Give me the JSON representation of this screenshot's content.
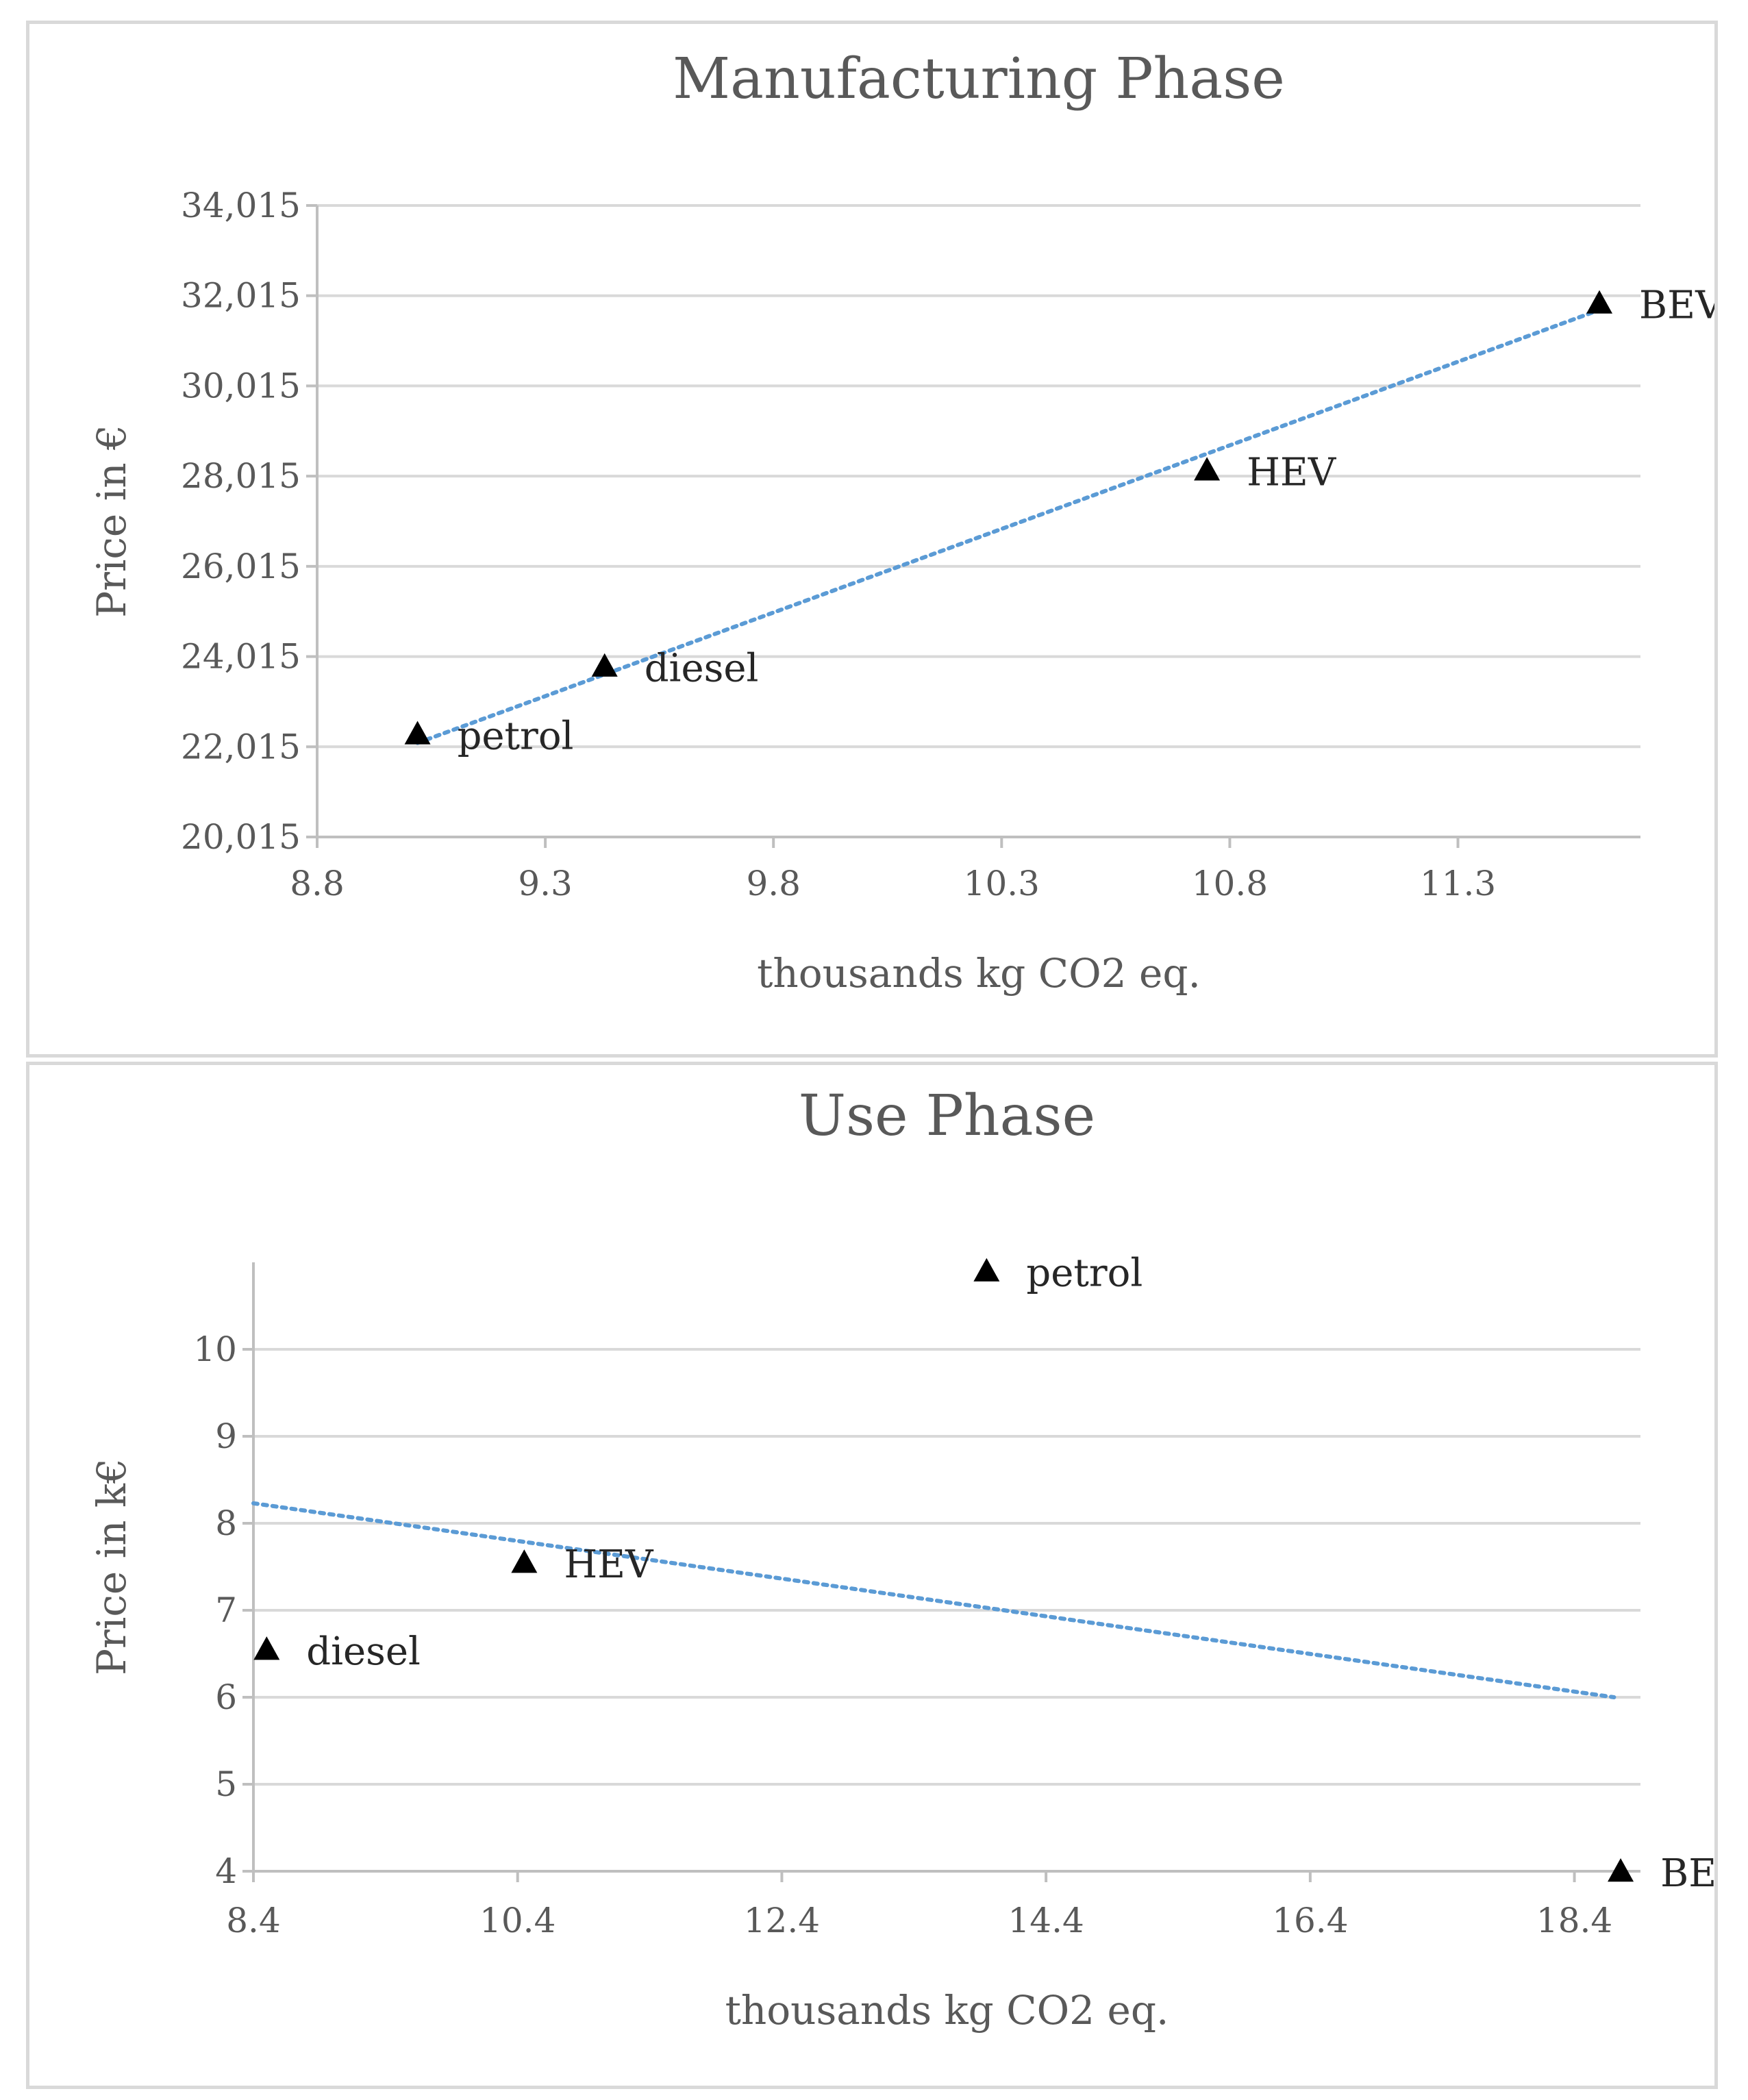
{
  "chart_data": [
    {
      "type": "scatter",
      "title": "Manufacturing Phase",
      "xlabel": "thousands kg CO2 eq.",
      "ylabel": "Price in €",
      "xlim": [
        8.8,
        11.7
      ],
      "ylim": [
        20015,
        34015
      ],
      "xticks": [
        8.8,
        9.3,
        9.8,
        10.3,
        10.8,
        11.3
      ],
      "xtick_labels": [
        "8.8",
        "9.3",
        "9.8",
        "10.3",
        "10.8",
        "11.3"
      ],
      "yticks": [
        20015,
        22015,
        24015,
        26015,
        28015,
        30015,
        32015,
        34015
      ],
      "ytick_labels": [
        "20,015",
        "22,015",
        "24,015",
        "26,015",
        "28,015",
        "30,015",
        "32,015",
        "34,015"
      ],
      "points": [
        {
          "label": "petrol",
          "x": 9.02,
          "y": 22300
        },
        {
          "label": "diesel",
          "x": 9.43,
          "y": 23800
        },
        {
          "label": "HEV",
          "x": 10.75,
          "y": 28150
        },
        {
          "label": "BEV",
          "x": 11.61,
          "y": 31850
        }
      ],
      "trendline": {
        "type": "linear",
        "x": [
          9.02,
          11.61
        ],
        "y": [
          22100,
          31700
        ],
        "color": "#5b9bd5",
        "style": "dotted"
      },
      "marker": "triangle",
      "grid": true,
      "legend": "none"
    },
    {
      "type": "scatter",
      "title": "Use Phase",
      "xlabel": "thousands kg CO2 eq.",
      "ylabel": "Price in k€",
      "xlim": [
        8.4,
        18.9
      ],
      "ylim": [
        4,
        11
      ],
      "xticks": [
        8.4,
        10.4,
        12.4,
        14.4,
        16.4,
        18.4
      ],
      "xtick_labels": [
        "8.4",
        "10.4",
        "12.4",
        "14.4",
        "16.4",
        "18.4"
      ],
      "yticks": [
        4,
        5,
        6,
        7,
        8,
        9,
        10
      ],
      "ytick_labels": [
        "4",
        "5",
        "6",
        "7",
        "8",
        "9",
        "10"
      ],
      "points": [
        {
          "label": "diesel",
          "x": 8.5,
          "y": 6.55
        },
        {
          "label": "HEV",
          "x": 10.45,
          "y": 7.55
        },
        {
          "label": "petrol",
          "x": 13.95,
          "y": 10.9
        },
        {
          "label": "BEV",
          "x": 18.75,
          "y": 4.0
        }
      ],
      "trendline": {
        "type": "linear",
        "x": [
          8.4,
          18.7
        ],
        "y": [
          8.23,
          6.0
        ],
        "color": "#5b9bd5",
        "style": "dotted"
      },
      "marker": "triangle",
      "grid": true,
      "legend": "none"
    }
  ]
}
